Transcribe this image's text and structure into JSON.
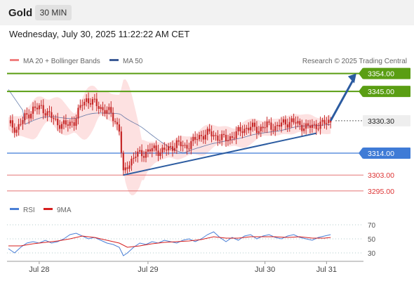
{
  "header": {
    "symbol": "Gold",
    "timeframe": "30 MIN"
  },
  "datetime": "Wednesday, July 30, 2025 11:22:22 AM CET",
  "legend": {
    "ma20": "MA 20 + Bollinger Bands",
    "ma50": "MA 50",
    "credit": "Research © 2025 Trading Central",
    "rsi": "RSI",
    "rsi_ma": "9MA"
  },
  "colors": {
    "candle": "#c62828",
    "bollinger_fill": "#fde1e1",
    "ma50": "#3d5b96",
    "resistance": "#5a9e13",
    "support": "#3f7bd6",
    "support_minor": "#e06060",
    "current": "#222222",
    "rsi": "#4a7fd6",
    "rsi_ma": "#d61f1f",
    "arrow": "#2b5ba0"
  },
  "chart_data": [
    {
      "type": "candlestick",
      "title": "Gold",
      "timeframe": "30 MIN",
      "ylim": [
        3290,
        3362
      ],
      "x_ticks": [
        "Jul 28",
        "Jul 29",
        "Jul 30",
        "Jul 31"
      ],
      "legend_placement": "top-left",
      "series": [
        {
          "name": "MA 20 + Bollinger Bands"
        },
        {
          "name": "MA 50"
        }
      ],
      "levels": [
        {
          "value": 3354.0,
          "label": "3354.00",
          "kind": "resistance"
        },
        {
          "value": 3345.0,
          "label": "3345.00",
          "kind": "resistance"
        },
        {
          "value": 3330.3,
          "label": "3330.30",
          "kind": "current"
        },
        {
          "value": 3314.0,
          "label": "3314.00",
          "kind": "support"
        },
        {
          "value": 3303.0,
          "label": "3303.00",
          "kind": "support_minor"
        },
        {
          "value": 3295.0,
          "label": "3295.00",
          "kind": "support_minor"
        }
      ],
      "price_path": [
        [
          0,
          3329
        ],
        [
          4,
          3326
        ],
        [
          8,
          3332
        ],
        [
          12,
          3336
        ],
        [
          16,
          3337
        ],
        [
          20,
          3333
        ],
        [
          24,
          3329
        ],
        [
          28,
          3328
        ],
        [
          32,
          3330
        ],
        [
          36,
          3339
        ],
        [
          38,
          3341
        ],
        [
          42,
          3339
        ],
        [
          46,
          3336
        ],
        [
          50,
          3334
        ],
        [
          54,
          3326
        ],
        [
          56,
          3303
        ],
        [
          58,
          3308
        ],
        [
          62,
          3313
        ],
        [
          66,
          3314
        ],
        [
          70,
          3316
        ],
        [
          74,
          3315
        ],
        [
          78,
          3316
        ],
        [
          82,
          3319
        ],
        [
          86,
          3317
        ],
        [
          90,
          3320
        ],
        [
          94,
          3323
        ],
        [
          98,
          3324
        ],
        [
          102,
          3322
        ],
        [
          106,
          3321
        ],
        [
          110,
          3323
        ],
        [
          114,
          3326
        ],
        [
          118,
          3327
        ],
        [
          122,
          3326
        ],
        [
          126,
          3328
        ],
        [
          130,
          3327
        ],
        [
          134,
          3329
        ],
        [
          138,
          3330
        ],
        [
          142,
          3328
        ],
        [
          146,
          3327
        ],
        [
          150,
          3328
        ],
        [
          154,
          3329
        ],
        [
          157,
          3330.3
        ]
      ],
      "trendline": {
        "from": [
          56,
          3303
        ],
        "to": [
          150,
          3324
        ]
      },
      "projection_arrow": {
        "from": [
          157,
          3330.3
        ],
        "to": [
          162,
          3354
        ]
      }
    },
    {
      "type": "line",
      "title": "RSI",
      "ylim": [
        20,
        78
      ],
      "y_ticks": [
        70,
        50,
        30
      ],
      "reference_lines": [
        70,
        50,
        30
      ],
      "legend_placement": "top-left",
      "series": [
        {
          "name": "RSI",
          "values": [
            [
              0,
              36
            ],
            [
              3,
              30
            ],
            [
              6,
              38
            ],
            [
              9,
              44
            ],
            [
              12,
              46
            ],
            [
              15,
              44
            ],
            [
              18,
              48
            ],
            [
              21,
              44
            ],
            [
              24,
              46
            ],
            [
              27,
              50
            ],
            [
              30,
              56
            ],
            [
              33,
              58
            ],
            [
              36,
              54
            ],
            [
              39,
              50
            ],
            [
              42,
              52
            ],
            [
              45,
              48
            ],
            [
              48,
              44
            ],
            [
              51,
              42
            ],
            [
              54,
              38
            ],
            [
              56,
              26
            ],
            [
              58,
              30
            ],
            [
              61,
              38
            ],
            [
              64,
              44
            ],
            [
              67,
              42
            ],
            [
              70,
              46
            ],
            [
              73,
              44
            ],
            [
              76,
              48
            ],
            [
              79,
              46
            ],
            [
              82,
              44
            ],
            [
              85,
              48
            ],
            [
              88,
              50
            ],
            [
              91,
              46
            ],
            [
              94,
              50
            ],
            [
              97,
              56
            ],
            [
              100,
              60
            ],
            [
              103,
              52
            ],
            [
              106,
              46
            ],
            [
              109,
              52
            ],
            [
              112,
              48
            ],
            [
              115,
              54
            ],
            [
              118,
              56
            ],
            [
              121,
              50
            ],
            [
              124,
              54
            ],
            [
              127,
              56
            ],
            [
              130,
              52
            ],
            [
              133,
              50
            ],
            [
              136,
              54
            ],
            [
              139,
              56
            ],
            [
              142,
              52
            ],
            [
              145,
              50
            ],
            [
              148,
              48
            ],
            [
              151,
              52
            ],
            [
              154,
              54
            ],
            [
              157,
              56
            ]
          ]
        },
        {
          "name": "9MA",
          "values": [
            [
              0,
              40
            ],
            [
              6,
              40
            ],
            [
              12,
              43
            ],
            [
              18,
              45
            ],
            [
              24,
              47
            ],
            [
              30,
              50
            ],
            [
              36,
              54
            ],
            [
              42,
              52
            ],
            [
              48,
              48
            ],
            [
              54,
              44
            ],
            [
              58,
              38
            ],
            [
              64,
              40
            ],
            [
              70,
              43
            ],
            [
              76,
              45
            ],
            [
              82,
              46
            ],
            [
              88,
              47
            ],
            [
              94,
              49
            ],
            [
              100,
              53
            ],
            [
              106,
              51
            ],
            [
              112,
              51
            ],
            [
              118,
              53
            ],
            [
              124,
              53
            ],
            [
              130,
              53
            ],
            [
              136,
              52
            ],
            [
              142,
              53
            ],
            [
              148,
              51
            ],
            [
              154,
              51
            ],
            [
              157,
              52
            ]
          ]
        }
      ]
    }
  ]
}
